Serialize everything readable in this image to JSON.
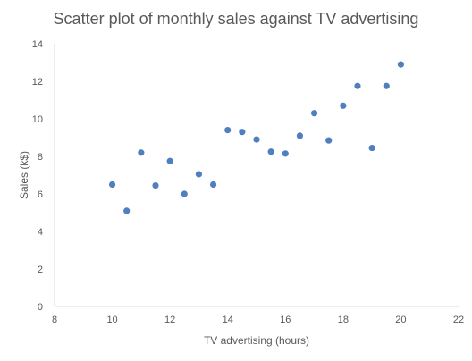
{
  "chart_data": {
    "type": "scatter",
    "title": "Scatter plot of monthly sales against TV advertising",
    "xlabel": "TV advertising (hours)",
    "ylabel": "Sales (k$)",
    "xlim": [
      8,
      22
    ],
    "ylim": [
      0,
      14
    ],
    "x_ticks": [
      "8",
      "10",
      "12",
      "14",
      "16",
      "18",
      "20",
      "22"
    ],
    "y_ticks": [
      "0",
      "2",
      "4",
      "6",
      "8",
      "10",
      "12",
      "14"
    ],
    "grid": false,
    "legend": "none",
    "marker_color": "#4f7fbf",
    "axis_color": "#d9d9d9",
    "points": [
      {
        "x": 10.0,
        "y": 6.5
      },
      {
        "x": 10.5,
        "y": 5.1
      },
      {
        "x": 11.0,
        "y": 8.2
      },
      {
        "x": 11.5,
        "y": 6.45
      },
      {
        "x": 12.0,
        "y": 7.75
      },
      {
        "x": 12.5,
        "y": 6.0
      },
      {
        "x": 13.0,
        "y": 7.05
      },
      {
        "x": 13.5,
        "y": 6.5
      },
      {
        "x": 14.0,
        "y": 9.4
      },
      {
        "x": 14.5,
        "y": 9.3
      },
      {
        "x": 15.0,
        "y": 8.9
      },
      {
        "x": 15.5,
        "y": 8.25
      },
      {
        "x": 16.0,
        "y": 8.15
      },
      {
        "x": 16.5,
        "y": 9.1
      },
      {
        "x": 17.0,
        "y": 10.3
      },
      {
        "x": 17.5,
        "y": 8.85
      },
      {
        "x": 18.0,
        "y": 10.7
      },
      {
        "x": 18.5,
        "y": 11.75
      },
      {
        "x": 19.0,
        "y": 8.45
      },
      {
        "x": 19.5,
        "y": 11.75
      },
      {
        "x": 20.0,
        "y": 12.9
      }
    ]
  }
}
